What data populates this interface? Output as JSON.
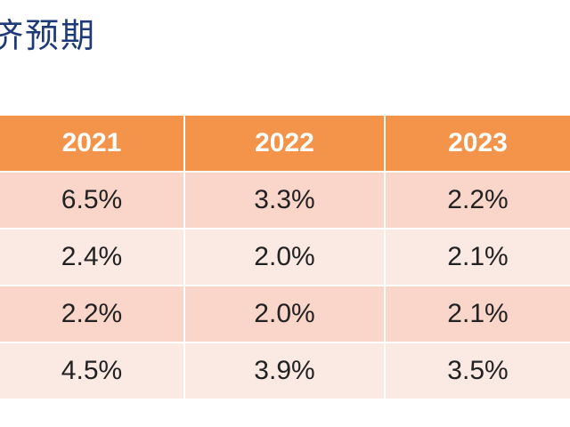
{
  "title": "济预期",
  "table": {
    "headers": [
      "2021",
      "2022",
      "2023"
    ],
    "rows": [
      [
        "6.5%",
        "3.3%",
        "2.2%"
      ],
      [
        "2.4%",
        "2.0%",
        "2.1%"
      ],
      [
        "2.2%",
        "2.0%",
        "2.1%"
      ],
      [
        "4.5%",
        "3.9%",
        "3.5%"
      ]
    ]
  },
  "colors": {
    "header_bg": "#f4934a",
    "row_odd_bg": "#f9d6c9",
    "row_even_bg": "#fbe9e3",
    "title_color": "#1f3a78"
  }
}
